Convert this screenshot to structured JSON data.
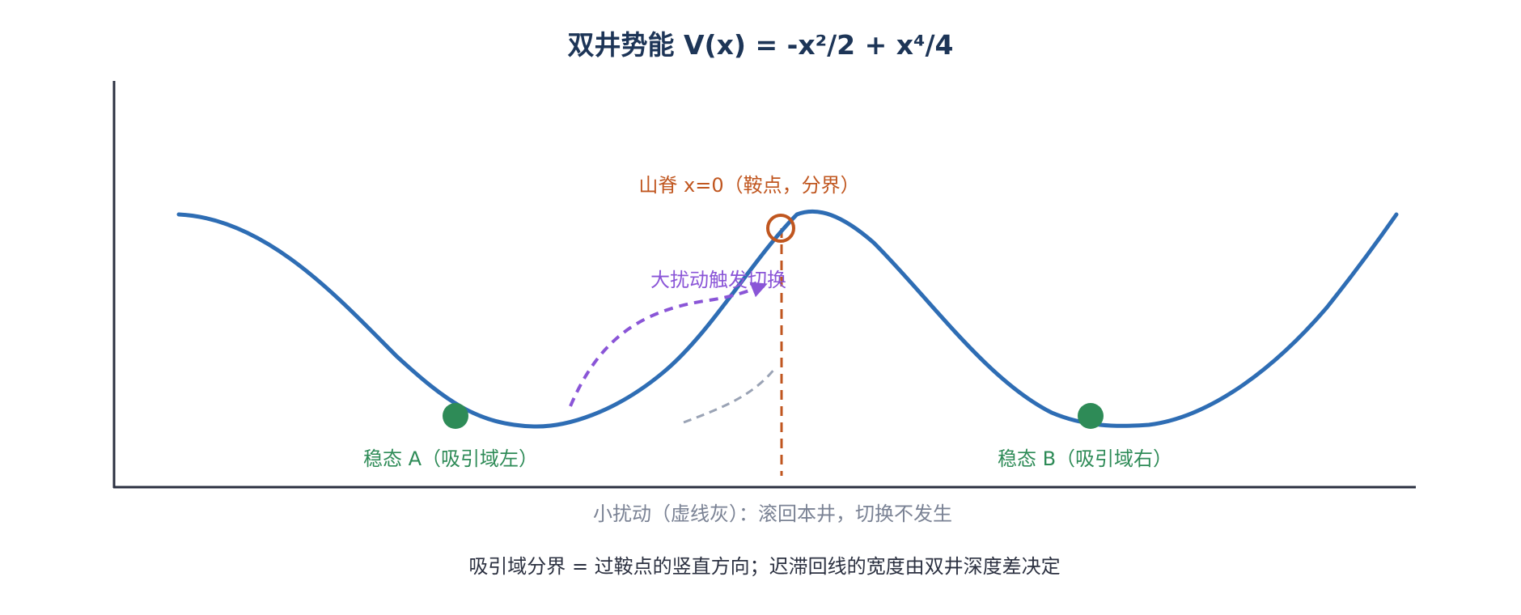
{
  "title": "双井势能 V(x) = -x²/2 + x⁴/4",
  "labels": {
    "saddle": "山脊 x=0（鞍点，分界）",
    "well_a": "稳态 A（吸引域左）",
    "well_b": "稳态 B（吸引域右）",
    "big_perturbation": "大扰动触发切换",
    "small_perturbation": "小扰动（虚线灰）：滚回本井，切换不发生",
    "footer": "吸引域分界 = 过鞍点的竖直方向；迟滞回线的宽度由双井深度差决定"
  },
  "colors": {
    "curve": "#2e6db4",
    "axis": "#2b3040",
    "saddle": "#c0561f",
    "stable": "#2e8b57",
    "big_arrow": "#8a55d7",
    "small_arrow": "#9aa3b5",
    "title": "#1d3557",
    "footer": "#2b3040",
    "small_note": "#7a8294"
  }
}
